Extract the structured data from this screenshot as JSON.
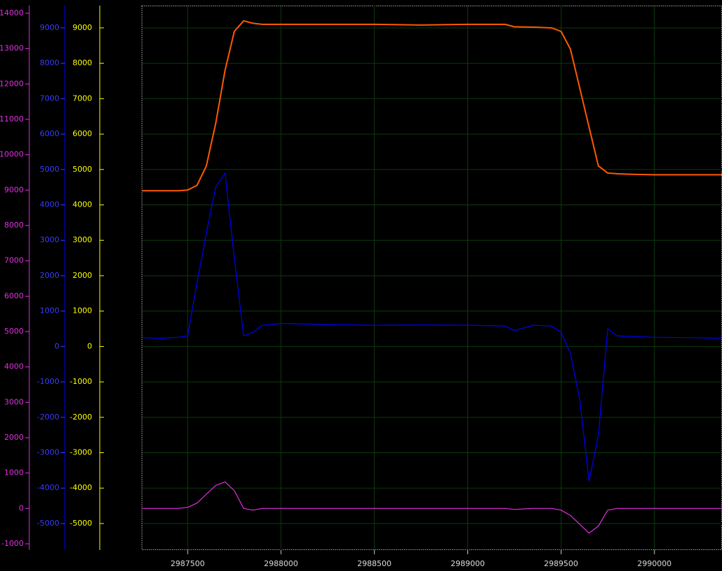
{
  "chart_data": {
    "type": "line",
    "x": [
      2987257,
      2987350,
      2987450,
      2987500,
      2987550,
      2987600,
      2987650,
      2987700,
      2987750,
      2987800,
      2987850,
      2987900,
      2988000,
      2988250,
      2988500,
      2988750,
      2989000,
      2989200,
      2989250,
      2989350,
      2989450,
      2989500,
      2989550,
      2989600,
      2989650,
      2989700,
      2989750,
      2989800,
      2989900,
      2990000,
      2990200,
      2990362
    ],
    "series": [
      {
        "color": "#ff5a00",
        "values": [
          4400,
          4400,
          4400,
          4420,
          4550,
          5100,
          6300,
          7800,
          8900,
          9200,
          9130,
          9100,
          9100,
          9100,
          9100,
          9080,
          9100,
          9100,
          9030,
          9020,
          9000,
          8900,
          8400,
          7300,
          6200,
          5100,
          4900,
          4880,
          4860,
          4850,
          4850,
          4850
        ]
      },
      {
        "color": "#0000ff",
        "axis": "y2",
        "values": [
          250,
          230,
          260,
          300,
          1800,
          3200,
          4500,
          4900,
          2500,
          300,
          400,
          600,
          650,
          620,
          600,
          610,
          600,
          580,
          450,
          600,
          580,
          400,
          -200,
          -1500,
          -3800,
          -2500,
          500,
          300,
          280,
          260,
          250,
          230
        ]
      },
      {
        "color": "#e030e0",
        "axis": "y3",
        "values": [
          0,
          0,
          0,
          30,
          150,
          400,
          650,
          750,
          500,
          0,
          -50,
          0,
          0,
          0,
          0,
          0,
          0,
          0,
          -30,
          0,
          0,
          -50,
          -200,
          -450,
          -700,
          -500,
          -50,
          0,
          0,
          0,
          0,
          0
        ]
      }
    ],
    "xlim": [
      2987257,
      2990362
    ],
    "xticks": [
      2987500,
      2988000,
      2988500,
      2989000,
      2989500,
      2990000
    ],
    "ylim": [
      -5750,
      9630
    ],
    "yticks": [
      -5000,
      -4000,
      -3000,
      -2000,
      -1000,
      0,
      1000,
      2000,
      3000,
      4000,
      5000,
      6000,
      7000,
      8000,
      9000
    ],
    "y2lim": [
      -5750,
      9630
    ],
    "y2ticks": [
      -5000,
      -4000,
      -3000,
      -2000,
      -1000,
      0,
      1000,
      2000,
      3000,
      4000,
      5000,
      6000,
      7000,
      8000,
      9000
    ],
    "y3lim": [
      -1178,
      14217
    ],
    "y3ticks": [
      -1000,
      0,
      1000,
      2000,
      3000,
      4000,
      5000,
      6000,
      7000,
      8000,
      9000,
      10000,
      11000,
      12000,
      13000,
      14000
    ],
    "grid": true
  }
}
